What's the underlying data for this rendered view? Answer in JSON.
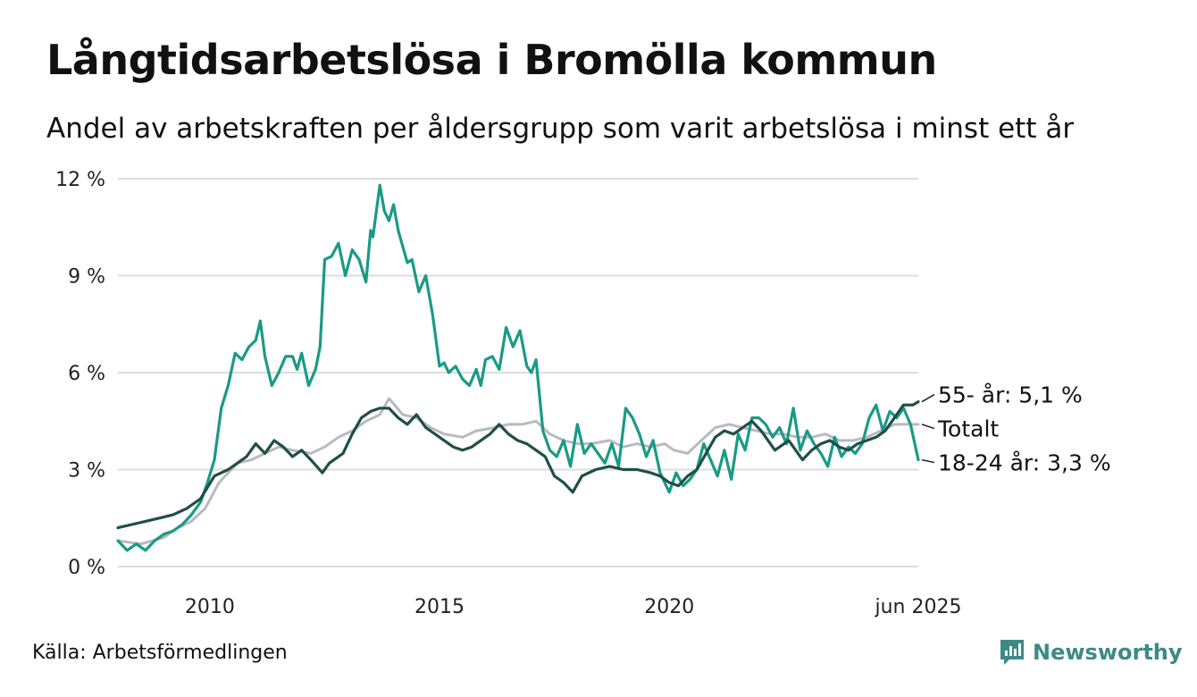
{
  "title": "Långtidsarbetslösa i Bromölla kommun",
  "subtitle": "Andel av arbetskraften per åldersgrupp som varit arbetslösa i minst ett år",
  "source": "Källa: Arbetsförmedlingen",
  "brand": {
    "name": "Newsworthy",
    "icon": "newsworthy-logo-icon",
    "color": "#3d8a84"
  },
  "chart_data": {
    "type": "line",
    "title": "Långtidsarbetslösa i Bromölla kommun",
    "subtitle": "Andel av arbetskraften per åldersgrupp som varit arbetslösa i minst ett år",
    "xlabel": "",
    "ylabel": "",
    "xlim": [
      2008.0,
      2025.42
    ],
    "ylim": [
      0,
      12
    ],
    "y_ticks": [
      0,
      3,
      6,
      9,
      12
    ],
    "y_tick_labels": [
      "0 %",
      "3 %",
      "6 %",
      "9 %",
      "12 %"
    ],
    "x_ticks": [
      2010,
      2015,
      2020,
      2025.42
    ],
    "x_tick_labels": [
      "2010",
      "2015",
      "2020",
      "jun 2025"
    ],
    "grid": "horizontal",
    "legend": "direct labels at line ends (right)",
    "series": [
      {
        "name": "Totalt",
        "label": "Totalt",
        "color": "#b9b9c3",
        "x": [
          2008.0,
          2008.5,
          2009.0,
          2009.3,
          2009.6,
          2009.9,
          2010.2,
          2010.6,
          2010.9,
          2011.2,
          2011.5,
          2011.8,
          2012.2,
          2012.5,
          2012.8,
          2013.1,
          2013.4,
          2013.7,
          2013.9,
          2014.2,
          2014.5,
          2014.8,
          2015.1,
          2015.5,
          2015.8,
          2016.2,
          2016.5,
          2016.8,
          2017.1,
          2017.4,
          2017.7,
          2018.0,
          2018.3,
          2018.7,
          2019.0,
          2019.3,
          2019.6,
          2019.9,
          2020.1,
          2020.4,
          2020.7,
          2021.0,
          2021.3,
          2021.6,
          2021.9,
          2022.2,
          2022.5,
          2022.8,
          2023.1,
          2023.4,
          2023.7,
          2024.0,
          2024.3,
          2024.6,
          2024.9,
          2025.2,
          2025.42
        ],
        "values": [
          0.8,
          0.7,
          0.9,
          1.2,
          1.4,
          1.8,
          2.6,
          3.2,
          3.3,
          3.5,
          3.7,
          3.6,
          3.5,
          3.7,
          4.0,
          4.2,
          4.5,
          4.7,
          5.2,
          4.7,
          4.6,
          4.3,
          4.1,
          4.0,
          4.2,
          4.3,
          4.4,
          4.4,
          4.5,
          4.1,
          3.9,
          3.8,
          3.8,
          3.9,
          3.7,
          3.8,
          3.7,
          3.8,
          3.6,
          3.5,
          3.9,
          4.3,
          4.4,
          4.3,
          4.2,
          4.1,
          4.1,
          4.0,
          4.0,
          4.1,
          3.9,
          3.9,
          4.0,
          4.2,
          4.4,
          4.4,
          4.4
        ]
      },
      {
        "name": "18-24 år",
        "label": "18-24 år: 3,3 %",
        "color": "#1a9a86",
        "x": [
          2008.0,
          2008.2,
          2008.4,
          2008.6,
          2008.8,
          2009.0,
          2009.2,
          2009.4,
          2009.6,
          2009.8,
          2009.95,
          2010.1,
          2010.25,
          2010.4,
          2010.55,
          2010.7,
          2010.85,
          2011.0,
          2011.1,
          2011.2,
          2011.35,
          2011.5,
          2011.65,
          2011.8,
          2011.9,
          2012.0,
          2012.15,
          2012.3,
          2012.4,
          2012.5,
          2012.65,
          2012.8,
          2012.95,
          2013.1,
          2013.25,
          2013.4,
          2013.5,
          2013.55,
          2013.7,
          2013.8,
          2013.9,
          2014.0,
          2014.1,
          2014.2,
          2014.3,
          2014.4,
          2014.55,
          2014.7,
          2014.85,
          2015.0,
          2015.1,
          2015.2,
          2015.35,
          2015.5,
          2015.65,
          2015.8,
          2015.9,
          2016.0,
          2016.15,
          2016.3,
          2016.45,
          2016.6,
          2016.75,
          2016.9,
          2017.0,
          2017.1,
          2017.25,
          2017.4,
          2017.55,
          2017.7,
          2017.85,
          2018.0,
          2018.15,
          2018.3,
          2018.45,
          2018.6,
          2018.75,
          2018.9,
          2019.05,
          2019.2,
          2019.35,
          2019.5,
          2019.65,
          2019.8,
          2019.9,
          2020.0,
          2020.15,
          2020.3,
          2020.45,
          2020.6,
          2020.75,
          2020.9,
          2021.05,
          2021.2,
          2021.35,
          2021.5,
          2021.65,
          2021.8,
          2021.95,
          2022.1,
          2022.25,
          2022.4,
          2022.55,
          2022.7,
          2022.85,
          2023.0,
          2023.15,
          2023.3,
          2023.45,
          2023.6,
          2023.75,
          2023.9,
          2024.05,
          2024.2,
          2024.35,
          2024.5,
          2024.65,
          2024.8,
          2024.95,
          2025.1,
          2025.25,
          2025.42
        ],
        "values": [
          0.8,
          0.5,
          0.7,
          0.5,
          0.8,
          1.0,
          1.1,
          1.3,
          1.6,
          2.0,
          2.6,
          3.3,
          4.9,
          5.6,
          6.6,
          6.4,
          6.8,
          7.0,
          7.6,
          6.5,
          5.6,
          6.0,
          6.5,
          6.5,
          6.1,
          6.6,
          5.6,
          6.1,
          6.8,
          9.5,
          9.6,
          10.0,
          9.0,
          9.8,
          9.5,
          8.8,
          10.4,
          10.2,
          11.8,
          11.0,
          10.7,
          11.2,
          10.4,
          9.9,
          9.4,
          9.5,
          8.5,
          9.0,
          7.8,
          6.2,
          6.3,
          6.0,
          6.2,
          5.8,
          5.6,
          6.1,
          5.6,
          6.4,
          6.5,
          6.1,
          7.4,
          6.8,
          7.3,
          6.2,
          6.0,
          6.4,
          4.2,
          3.6,
          3.4,
          3.9,
          3.1,
          4.4,
          3.5,
          3.8,
          3.5,
          3.2,
          3.8,
          3.1,
          4.9,
          4.6,
          4.1,
          3.4,
          3.9,
          2.9,
          2.6,
          2.3,
          2.9,
          2.5,
          2.7,
          3.0,
          3.8,
          3.3,
          2.8,
          3.6,
          2.7,
          4.1,
          3.6,
          4.6,
          4.6,
          4.4,
          4.0,
          4.3,
          3.8,
          4.9,
          3.6,
          4.2,
          3.8,
          3.5,
          3.1,
          4.0,
          3.4,
          3.7,
          3.5,
          3.8,
          4.6,
          5.0,
          4.2,
          4.8,
          4.6,
          4.9,
          4.4,
          3.3
        ]
      },
      {
        "name": "55- år",
        "label": "55- år: 5,1 %",
        "color": "#1f4f46",
        "x": [
          2008.0,
          2008.3,
          2008.6,
          2008.9,
          2009.2,
          2009.5,
          2009.8,
          2010.1,
          2010.4,
          2010.6,
          2010.8,
          2011.0,
          2011.2,
          2011.4,
          2011.6,
          2011.8,
          2012.0,
          2012.2,
          2012.45,
          2012.6,
          2012.9,
          2013.1,
          2013.3,
          2013.5,
          2013.7,
          2013.9,
          2014.1,
          2014.3,
          2014.5,
          2014.7,
          2014.9,
          2015.1,
          2015.3,
          2015.5,
          2015.7,
          2015.9,
          2016.1,
          2016.3,
          2016.5,
          2016.7,
          2016.9,
          2017.1,
          2017.3,
          2017.5,
          2017.7,
          2017.9,
          2018.1,
          2018.4,
          2018.7,
          2019.0,
          2019.3,
          2019.6,
          2019.8,
          2020.0,
          2020.2,
          2020.4,
          2020.6,
          2020.8,
          2021.0,
          2021.2,
          2021.4,
          2021.6,
          2021.8,
          2022.0,
          2022.3,
          2022.6,
          2022.9,
          2023.1,
          2023.3,
          2023.5,
          2023.7,
          2023.9,
          2024.1,
          2024.3,
          2024.5,
          2024.7,
          2024.9,
          2025.1,
          2025.3,
          2025.42
        ],
        "values": [
          1.2,
          1.3,
          1.4,
          1.5,
          1.6,
          1.8,
          2.1,
          2.8,
          3.0,
          3.2,
          3.4,
          3.8,
          3.5,
          3.9,
          3.7,
          3.4,
          3.6,
          3.3,
          2.9,
          3.2,
          3.5,
          4.1,
          4.6,
          4.8,
          4.9,
          4.9,
          4.6,
          4.4,
          4.7,
          4.3,
          4.1,
          3.9,
          3.7,
          3.6,
          3.7,
          3.9,
          4.1,
          4.4,
          4.1,
          3.9,
          3.8,
          3.6,
          3.4,
          2.8,
          2.6,
          2.3,
          2.8,
          3.0,
          3.1,
          3.0,
          3.0,
          2.9,
          2.8,
          2.6,
          2.5,
          2.8,
          3.0,
          3.5,
          4.0,
          4.2,
          4.1,
          4.3,
          4.5,
          4.2,
          3.6,
          3.9,
          3.3,
          3.6,
          3.8,
          3.9,
          3.7,
          3.6,
          3.8,
          3.9,
          4.0,
          4.2,
          4.6,
          5.0,
          5.0,
          5.1
        ]
      }
    ]
  }
}
